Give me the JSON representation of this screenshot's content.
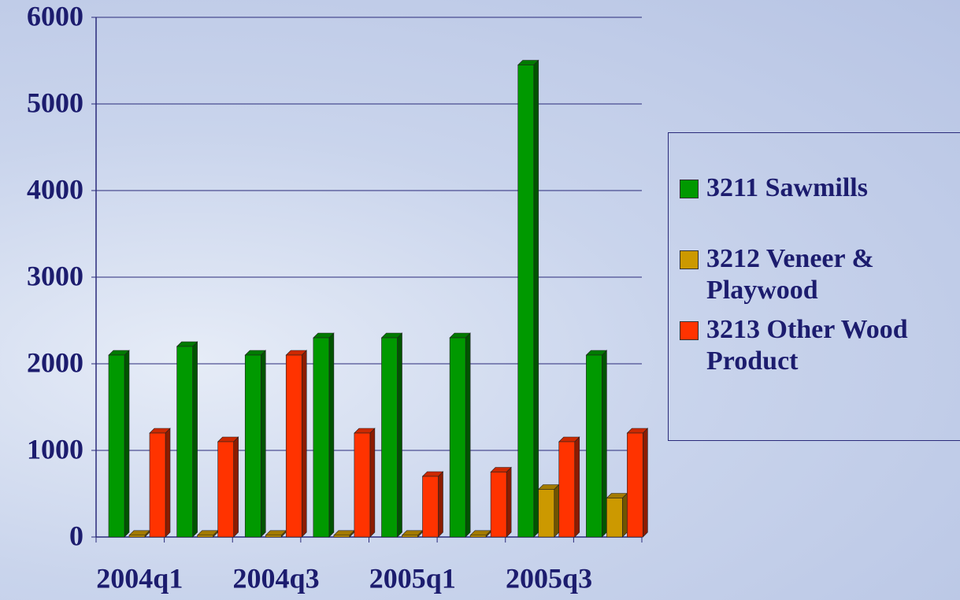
{
  "chart_data": {
    "type": "bar3d",
    "categories": [
      "2004q1",
      null,
      "2004q3",
      null,
      "2005q1",
      null,
      "2005q3",
      null
    ],
    "series": [
      {
        "name": "3211 Sawmills",
        "color": "#009900",
        "values": [
          2100,
          2200,
          2100,
          2300,
          2300,
          2300,
          5450,
          2100
        ]
      },
      {
        "name": "3212 Veneer & Playwood",
        "color": "#cc9900",
        "values": [
          20,
          20,
          20,
          20,
          20,
          20,
          550,
          450
        ]
      },
      {
        "name": "3213 Other Wood Product",
        "color": "#ff3300",
        "values": [
          1200,
          1100,
          2100,
          1200,
          700,
          750,
          1100,
          1200
        ]
      }
    ],
    "ylim": [
      0,
      6000
    ],
    "yticks": [
      0,
      1000,
      2000,
      3000,
      4000,
      5000,
      6000
    ],
    "grid": true
  }
}
